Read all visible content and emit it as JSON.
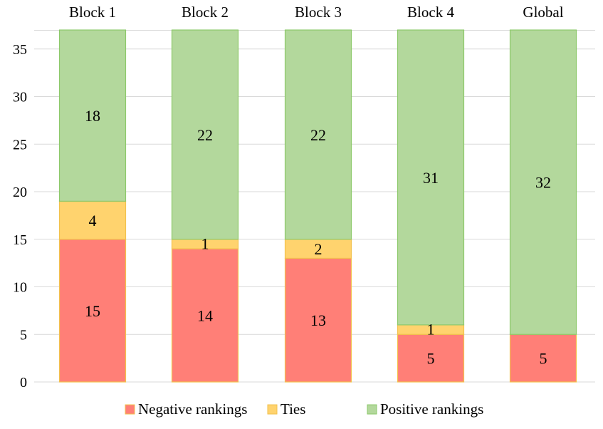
{
  "chart_data": {
    "type": "bar",
    "stacked": true,
    "title": "",
    "xlabel": "",
    "ylabel": "",
    "categories": [
      "Block 1",
      "Block 2",
      "Block 3",
      "Block 4",
      "Global"
    ],
    "ylim": [
      0,
      37
    ],
    "yticks": [
      0,
      5,
      10,
      15,
      20,
      25,
      30,
      35
    ],
    "grid": true,
    "legend_position": "bottom",
    "category_labels_position": "top",
    "series": [
      {
        "name": "Negative rankings",
        "color": "#ff7f77",
        "stroke": "#f2c24e",
        "values": [
          15,
          14,
          13,
          5,
          5
        ],
        "labels": [
          "15",
          "14",
          "13",
          "5",
          "5"
        ]
      },
      {
        "name": "Ties",
        "color": "#ffd36e",
        "stroke": "#f2c24e",
        "values": [
          4,
          1,
          2,
          1,
          0
        ],
        "labels": [
          "4",
          "1",
          "2",
          "1",
          ""
        ]
      },
      {
        "name": "Positive rankings",
        "color": "#b3d89c",
        "stroke": "#8dc96b",
        "values": [
          18,
          22,
          22,
          31,
          32
        ],
        "labels": [
          "18",
          "22",
          "22",
          "31",
          "32"
        ]
      }
    ]
  }
}
